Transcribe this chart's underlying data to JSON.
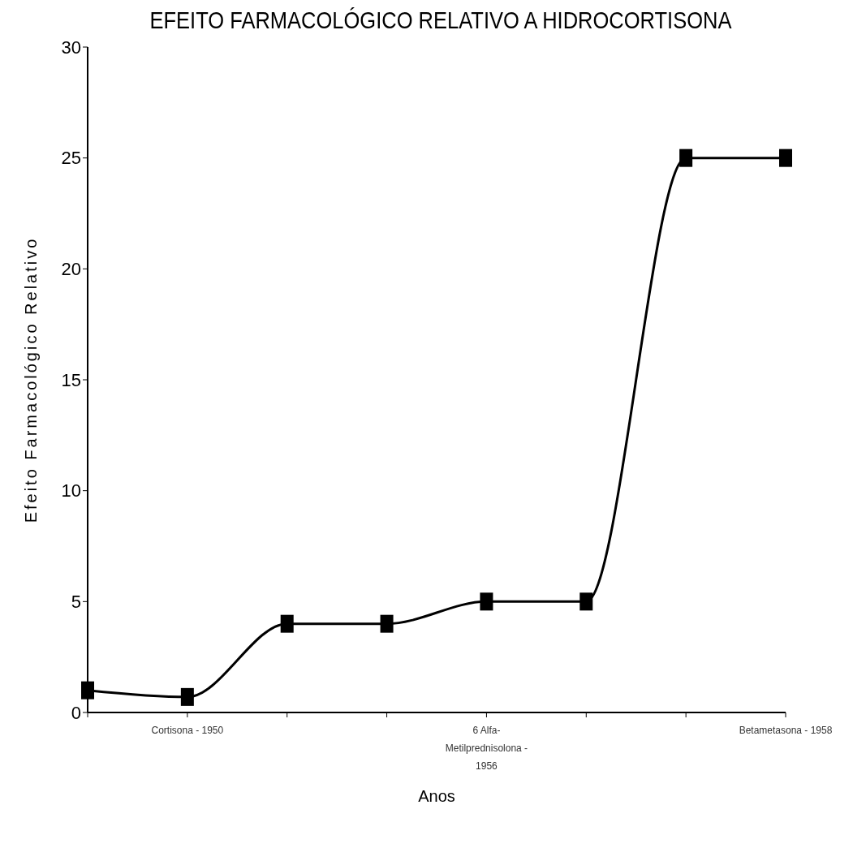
{
  "chart_data": {
    "type": "line",
    "title": "EFEITO FARMACOLÓGICO RELATIVO A HIDROCORTISONA",
    "xlabel": "Anos",
    "ylabel": "Efeito Farmacológico Relativo",
    "categories": [
      null,
      "Cortisona - 1950",
      null,
      null,
      "6 Alfa-Metilprednisolona - 1956",
      null,
      null,
      "Betametasona - 1958"
    ],
    "series": [
      {
        "color": "#000000",
        "values": [
          1,
          0.7,
          4,
          4,
          5,
          5,
          25,
          25
        ]
      }
    ],
    "ylim": [
      0,
      30
    ],
    "yticks": [
      0,
      5,
      10,
      15,
      20,
      25,
      30
    ],
    "legend": false,
    "marker": "square",
    "line_style": "solid"
  }
}
